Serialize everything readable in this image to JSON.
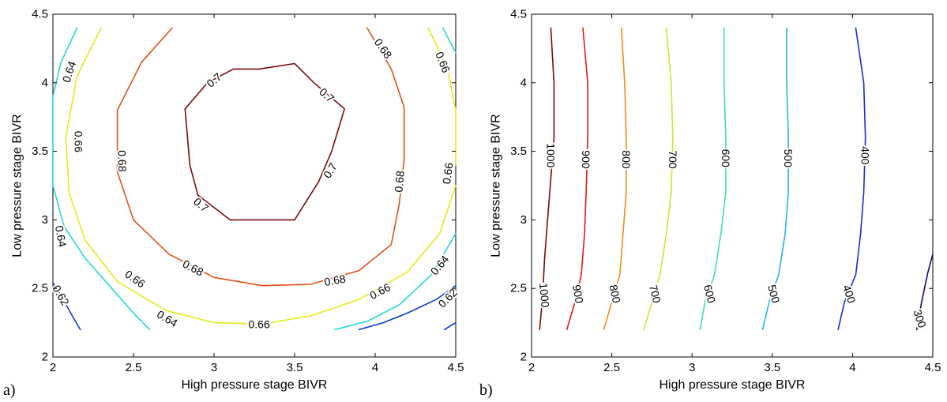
{
  "chart_data": [
    {
      "type": "contour",
      "panel_label": "a)",
      "xlabel": "High pressure stage BIVR",
      "ylabel": "Low pressure stage BIVR",
      "xlim": [
        2,
        4.5
      ],
      "ylim": [
        2,
        4.5
      ],
      "xticks": [
        "2",
        "2.5",
        "3",
        "3.5",
        "4",
        "4.5"
      ],
      "yticks": [
        "2",
        "2.5",
        "3",
        "3.5",
        "4",
        "4.5"
      ],
      "contours": [
        {
          "level": "0.62",
          "color": "#0a3cd6",
          "points": [
            [
              2.0,
              2.54
            ],
            [
              2.05,
              2.45
            ],
            [
              2.12,
              2.3
            ],
            [
              2.17,
              2.2
            ]
          ]
        },
        {
          "level": "0.62",
          "color": "#0a3cd6",
          "points": [
            [
              3.9,
              2.2
            ],
            [
              4.05,
              2.25
            ],
            [
              4.2,
              2.32
            ],
            [
              4.38,
              2.42
            ],
            [
              4.5,
              2.52
            ]
          ]
        },
        {
          "level": "",
          "color": "#0a3cd6",
          "points": [
            [
              4.43,
              2.2
            ],
            [
              4.5,
              2.25
            ]
          ]
        },
        {
          "level": "0.64",
          "color": "#25d8d8",
          "points": [
            [
              2.15,
              4.4
            ],
            [
              2.05,
              4.15
            ],
            [
              2.0,
              3.9
            ],
            [
              2.0,
              3.5
            ],
            [
              2.0,
              3.25
            ],
            [
              2.07,
              2.95
            ],
            [
              2.2,
              2.72
            ],
            [
              2.35,
              2.52
            ],
            [
              2.5,
              2.32
            ],
            [
              2.6,
              2.2
            ]
          ]
        },
        {
          "level": "0.64",
          "color": "#25d8d8",
          "points": [
            [
              3.75,
              2.2
            ],
            [
              3.95,
              2.26
            ],
            [
              4.15,
              2.38
            ],
            [
              4.35,
              2.6
            ],
            [
              4.5,
              2.9
            ]
          ]
        },
        {
          "level": "",
          "color": "#25d8d8",
          "points": [
            [
              4.42,
              4.4
            ],
            [
              4.5,
              4.22
            ]
          ]
        },
        {
          "level": "0.66",
          "color": "#e8e81a",
          "points": [
            [
              2.3,
              4.4
            ],
            [
              2.15,
              4.05
            ],
            [
              2.08,
              3.6
            ],
            [
              2.1,
              3.2
            ],
            [
              2.2,
              2.85
            ],
            [
              2.4,
              2.55
            ],
            [
              2.7,
              2.34
            ],
            [
              3.0,
              2.25
            ],
            [
              3.3,
              2.24
            ],
            [
              3.6,
              2.3
            ],
            [
              3.9,
              2.42
            ],
            [
              4.2,
              2.62
            ],
            [
              4.4,
              2.9
            ],
            [
              4.5,
              3.25
            ]
          ]
        },
        {
          "level": "0.66",
          "color": "#e8e81a",
          "points": [
            [
              4.5,
              3.4
            ],
            [
              4.5,
              3.8
            ],
            [
              4.45,
              4.1
            ],
            [
              4.33,
              4.4
            ]
          ]
        },
        {
          "level": "0.68",
          "color": "#e25016",
          "points": [
            [
              2.74,
              4.4
            ],
            [
              2.55,
              4.15
            ],
            [
              2.4,
              3.8
            ],
            [
              2.4,
              3.35
            ],
            [
              2.5,
              3.0
            ],
            [
              2.72,
              2.75
            ],
            [
              3.0,
              2.58
            ],
            [
              3.3,
              2.52
            ],
            [
              3.6,
              2.53
            ],
            [
              3.9,
              2.63
            ],
            [
              4.1,
              2.82
            ],
            [
              4.15,
              3.12
            ],
            [
              4.18,
              3.45
            ],
            [
              4.18,
              3.82
            ],
            [
              4.1,
              4.1
            ],
            [
              3.95,
              4.4
            ]
          ]
        },
        {
          "level": "0.7",
          "color": "#7a0a0a",
          "points": [
            [
              2.82,
              3.81
            ],
            [
              2.96,
              4.0
            ],
            [
              3.12,
              4.1
            ],
            [
              3.28,
              4.1
            ],
            [
              3.5,
              4.14
            ],
            [
              3.62,
              4.0
            ],
            [
              3.81,
              3.81
            ],
            [
              3.73,
              3.5
            ],
            [
              3.65,
              3.28
            ],
            [
              3.5,
              3.0
            ],
            [
              3.1,
              3.0
            ],
            [
              2.9,
              3.18
            ],
            [
              2.85,
              3.4
            ],
            [
              2.82,
              3.81
            ]
          ]
        }
      ],
      "labels": [
        {
          "text": "0.64",
          "x": 2.1,
          "y": 4.08,
          "rot": -72
        },
        {
          "text": "0.66",
          "x": 2.16,
          "y": 3.57,
          "rot": 90
        },
        {
          "text": "0.68",
          "x": 2.43,
          "y": 3.43,
          "rot": 88
        },
        {
          "text": "0.64",
          "x": 2.05,
          "y": 2.88,
          "rot": 80
        },
        {
          "text": "0.62",
          "x": 2.05,
          "y": 2.45,
          "rot": 60
        },
        {
          "text": "0.66",
          "x": 2.51,
          "y": 2.57,
          "rot": 35
        },
        {
          "text": "0.64",
          "x": 2.71,
          "y": 2.28,
          "rot": 30
        },
        {
          "text": "0.68",
          "x": 2.87,
          "y": 2.65,
          "rot": 28
        },
        {
          "text": "0.66",
          "x": 3.28,
          "y": 2.24,
          "rot": 0
        },
        {
          "text": "0.68",
          "x": 3.75,
          "y": 2.56,
          "rot": -10
        },
        {
          "text": "0.66",
          "x": 4.03,
          "y": 2.48,
          "rot": -28
        },
        {
          "text": "0.64",
          "x": 4.4,
          "y": 2.67,
          "rot": -50
        },
        {
          "text": "0.62",
          "x": 4.45,
          "y": 2.43,
          "rot": -45
        },
        {
          "text": "0.68",
          "x": 4.15,
          "y": 3.28,
          "rot": -85
        },
        {
          "text": "0.66",
          "x": 4.45,
          "y": 3.34,
          "rot": -82
        },
        {
          "text": "0.68",
          "x": 4.05,
          "y": 4.25,
          "rot": 55
        },
        {
          "text": "0.66",
          "x": 4.42,
          "y": 4.15,
          "rot": 68
        },
        {
          "text": "0.7",
          "x": 3.0,
          "y": 4.02,
          "rot": -40
        },
        {
          "text": "0.7",
          "x": 3.7,
          "y": 3.91,
          "rot": 42
        },
        {
          "text": "0.7",
          "x": 3.72,
          "y": 3.36,
          "rot": -58
        },
        {
          "text": "0.7",
          "x": 2.92,
          "y": 3.11,
          "rot": 40
        }
      ]
    },
    {
      "type": "contour",
      "panel_label": "b)",
      "xlabel": "High pressure stage BIVR",
      "ylabel": "Low pressure stage BIVR",
      "xlim": [
        2,
        4.5
      ],
      "ylim": [
        2,
        4.5
      ],
      "xticks": [
        "2",
        "2.5",
        "3",
        "3.5",
        "4",
        "4.5"
      ],
      "yticks": [
        "2",
        "2.5",
        "3",
        "3.5",
        "4",
        "4.5"
      ],
      "contours": [
        {
          "level": "1000",
          "color": "#7a0a0a",
          "points": [
            [
              2.12,
              4.4
            ],
            [
              2.14,
              4.0
            ],
            [
              2.14,
              3.6
            ],
            [
              2.12,
              3.3
            ],
            [
              2.1,
              3.0
            ],
            [
              2.08,
              2.7
            ],
            [
              2.07,
              2.45
            ],
            [
              2.05,
              2.2
            ]
          ]
        },
        {
          "level": "900",
          "color": "#e01a14",
          "points": [
            [
              2.32,
              4.4
            ],
            [
              2.35,
              4.0
            ],
            [
              2.35,
              3.6
            ],
            [
              2.34,
              3.2
            ],
            [
              2.33,
              2.9
            ],
            [
              2.31,
              2.6
            ],
            [
              2.27,
              2.4
            ],
            [
              2.22,
              2.2
            ]
          ]
        },
        {
          "level": "800",
          "color": "#f08a18",
          "points": [
            [
              2.56,
              4.4
            ],
            [
              2.58,
              4.0
            ],
            [
              2.59,
              3.6
            ],
            [
              2.59,
              3.2
            ],
            [
              2.57,
              2.9
            ],
            [
              2.55,
              2.6
            ],
            [
              2.5,
              2.4
            ],
            [
              2.45,
              2.2
            ]
          ]
        },
        {
          "level": "700",
          "color": "#c8e830",
          "points": [
            [
              2.84,
              4.4
            ],
            [
              2.87,
              4.0
            ],
            [
              2.88,
              3.6
            ],
            [
              2.87,
              3.2
            ],
            [
              2.84,
              2.9
            ],
            [
              2.8,
              2.6
            ],
            [
              2.75,
              2.4
            ],
            [
              2.7,
              2.2
            ]
          ]
        },
        {
          "level": "600",
          "color": "#40e0a8",
          "points": [
            [
              3.2,
              4.4
            ],
            [
              3.2,
              4.0
            ],
            [
              3.21,
              3.6
            ],
            [
              3.21,
              3.2
            ],
            [
              3.18,
              2.9
            ],
            [
              3.14,
              2.6
            ],
            [
              3.08,
              2.4
            ],
            [
              3.05,
              2.2
            ]
          ]
        },
        {
          "level": "500",
          "color": "#22b4e6",
          "points": [
            [
              3.59,
              4.4
            ],
            [
              3.59,
              4.0
            ],
            [
              3.6,
              3.6
            ],
            [
              3.6,
              3.2
            ],
            [
              3.58,
              2.9
            ],
            [
              3.54,
              2.6
            ],
            [
              3.48,
              2.4
            ],
            [
              3.44,
              2.2
            ]
          ]
        },
        {
          "level": "400",
          "color": "#1230d2",
          "points": [
            [
              4.02,
              4.4
            ],
            [
              4.07,
              4.0
            ],
            [
              4.08,
              3.6
            ],
            [
              4.07,
              3.2
            ],
            [
              4.05,
              2.9
            ],
            [
              4.02,
              2.6
            ],
            [
              3.95,
              2.4
            ],
            [
              3.91,
              2.2
            ]
          ]
        },
        {
          "level": "300",
          "color": "#0a0a80",
          "points": [
            [
              4.4,
              2.2
            ],
            [
              4.43,
              2.4
            ],
            [
              4.47,
              2.62
            ],
            [
              4.5,
              2.75
            ]
          ]
        }
      ],
      "labels": [
        {
          "text": "1000",
          "x": 2.12,
          "y": 3.47,
          "rot": 90
        },
        {
          "text": "900",
          "x": 2.34,
          "y": 3.44,
          "rot": 90
        },
        {
          "text": "800",
          "x": 2.59,
          "y": 3.44,
          "rot": 90
        },
        {
          "text": "700",
          "x": 2.88,
          "y": 3.44,
          "rot": 90
        },
        {
          "text": "600",
          "x": 3.21,
          "y": 3.45,
          "rot": 90
        },
        {
          "text": "500",
          "x": 3.6,
          "y": 3.45,
          "rot": 90
        },
        {
          "text": "400",
          "x": 4.08,
          "y": 3.47,
          "rot": 90
        },
        {
          "text": "1000",
          "x": 2.08,
          "y": 2.45,
          "rot": 85
        },
        {
          "text": "900",
          "x": 2.29,
          "y": 2.46,
          "rot": 80
        },
        {
          "text": "800",
          "x": 2.52,
          "y": 2.46,
          "rot": 78
        },
        {
          "text": "700",
          "x": 2.77,
          "y": 2.46,
          "rot": 76
        },
        {
          "text": "600",
          "x": 3.11,
          "y": 2.46,
          "rot": 76
        },
        {
          "text": "500",
          "x": 3.51,
          "y": 2.46,
          "rot": 75
        },
        {
          "text": "400",
          "x": 3.98,
          "y": 2.46,
          "rot": 72
        },
        {
          "text": "300",
          "x": 4.42,
          "y": 2.28,
          "rot": 72
        }
      ]
    }
  ]
}
